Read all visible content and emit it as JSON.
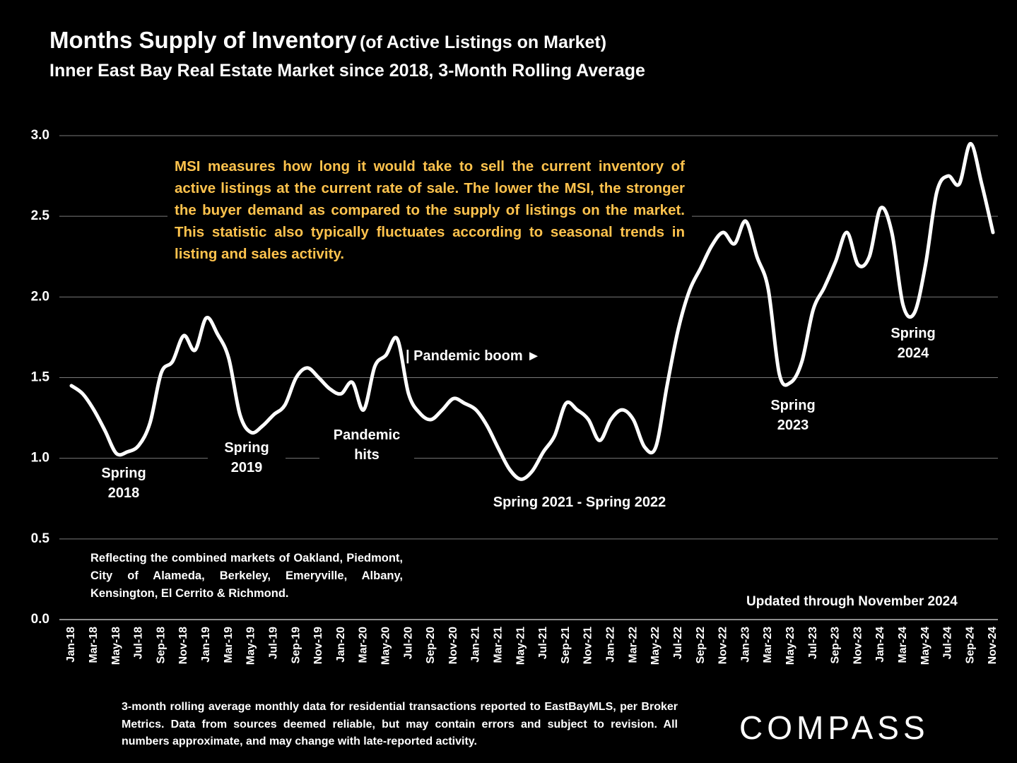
{
  "chart_data": {
    "type": "line",
    "title": "Months Supply of Inventory",
    "title_note": "(of Active Listings on Market)",
    "subtitle": "Inner East Bay Real Estate Market since 2018, 3-Month Rolling Average",
    "categories": [
      "Jan-18",
      null,
      "Mar-18",
      null,
      "May-18",
      null,
      "Jul-18",
      null,
      "Sep-18",
      null,
      "Nov-18",
      null,
      "Jan-19",
      null,
      "Mar-19",
      null,
      "May-19",
      null,
      "Jul-19",
      null,
      "Sep-19",
      null,
      "Nov-19",
      null,
      "Jan-20",
      null,
      "Mar-20",
      null,
      "May-20",
      null,
      "Jul-20",
      null,
      "Sep-20",
      null,
      "Nov-20",
      null,
      "Jan-21",
      null,
      "Mar-21",
      null,
      "May-21",
      null,
      "Jul-21",
      null,
      "Sep-21",
      null,
      "Nov-21",
      null,
      "Jan-22",
      null,
      "Mar-22",
      null,
      "May-22",
      null,
      "Jul-22",
      null,
      "Sep-22",
      null,
      "Nov-22",
      null,
      "Jan-23",
      null,
      "Mar-23",
      null,
      "May-23",
      null,
      "Jul-23",
      null,
      "Sep-23",
      null,
      "Nov-23",
      null,
      "Jan-24",
      null,
      "Mar-24",
      null,
      "May-24",
      null,
      "Jul-24",
      null,
      "Sep-24",
      null,
      "Nov-24"
    ],
    "series": [
      {
        "name": "Months Supply of Inventory",
        "color": "#ffffff",
        "values": [
          1.45,
          1.4,
          1.3,
          1.17,
          1.03,
          1.04,
          1.08,
          1.22,
          1.53,
          1.6,
          1.76,
          1.67,
          1.87,
          1.77,
          1.62,
          1.27,
          1.16,
          1.2,
          1.27,
          1.33,
          1.5,
          1.56,
          1.5,
          1.43,
          1.4,
          1.47,
          1.3,
          1.57,
          1.64,
          1.74,
          1.4,
          1.28,
          1.24,
          1.3,
          1.37,
          1.34,
          1.3,
          1.2,
          1.06,
          0.93,
          0.87,
          0.92,
          1.04,
          1.14,
          1.34,
          1.3,
          1.24,
          1.11,
          1.24,
          1.3,
          1.24,
          1.07,
          1.07,
          1.45,
          1.8,
          2.04,
          2.18,
          2.32,
          2.4,
          2.33,
          2.47,
          2.25,
          2.05,
          1.52,
          1.47,
          1.6,
          1.92,
          2.06,
          2.22,
          2.4,
          2.2,
          2.25,
          2.55,
          2.4,
          1.95,
          1.9,
          2.2,
          2.65,
          2.75,
          2.7,
          2.95,
          2.7,
          2.4
        ]
      }
    ],
    "ylim": [
      0,
      3
    ],
    "yticks": [
      {
        "value": 0,
        "label": "0.0"
      },
      0.5,
      {
        "value": 1,
        "label": "1.0"
      },
      1.5,
      {
        "value": 2,
        "label": "2.0"
      },
      2.5,
      {
        "value": 3,
        "label": "3.0"
      }
    ],
    "grid": true,
    "annotations": [
      "Spring 2018",
      "Spring 2019",
      "Pandemic hits",
      "| Pandemic boom ►",
      "Spring 2021 - Spring 2022",
      "Spring 2023",
      "Spring 2024"
    ],
    "explanation": "MSI measures how long it would take to sell the current inventory of active listings at the current rate of sale. The lower the MSI, the stronger the buyer demand as compared to the supply of listings on the market. This statistic also typically fluctuates according to seasonal trends in listing and sales activity.",
    "markets_note": "Reflecting the combined markets of Oakland, Piedmont, City of Alameda, Berkeley, Emeryville, Albany, Kensington, El Cerrito & Richmond.",
    "updated": "Updated through November 2024",
    "footnote": "3-month rolling average monthly data for residential transactions reported to EastBayMLS, per Broker Metrics. Data from sources deemed reliable, but may contain errors and subject to revision. All numbers approximate, and may change with late-reported activity.",
    "brand": "COMPASS"
  }
}
